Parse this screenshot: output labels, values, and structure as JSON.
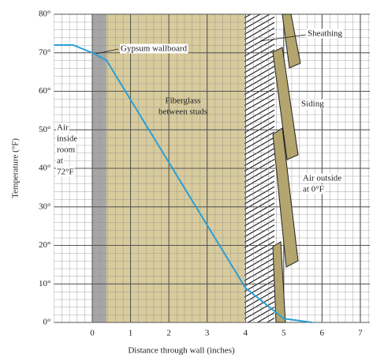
{
  "chart_data": {
    "type": "line",
    "x_label": "Distance through wall (inches)",
    "y_label": "Temperature (°F)",
    "x": [
      -1,
      -0.5,
      0,
      0.375,
      4,
      4.5,
      5,
      5.75
    ],
    "values": [
      72,
      72,
      70,
      68,
      9,
      5,
      1,
      0
    ],
    "color": "#2a9fd6",
    "xlim": [
      -1,
      7.25
    ],
    "ylim": [
      0,
      80
    ],
    "xticks": [
      0,
      1,
      2,
      3,
      4,
      5,
      6,
      7
    ],
    "yticks": [
      {
        "value": 0,
        "label": "0°"
      },
      {
        "value": 10,
        "label": "10°"
      },
      {
        "value": 20,
        "label": "20°"
      },
      {
        "value": 30,
        "label": "30°"
      },
      {
        "value": 40,
        "label": "40°"
      },
      {
        "value": 50,
        "label": "50°"
      },
      {
        "value": 60,
        "label": "60°"
      },
      {
        "value": 70,
        "label": "70°"
      },
      {
        "value": 80,
        "label": "80°"
      }
    ],
    "grid": true,
    "annotations": [
      {
        "lines": [
          "Gypsum wallboard"
        ]
      },
      {
        "lines": [
          "Fiberglass",
          "between studs"
        ]
      },
      {
        "lines": [
          "Sheathing"
        ]
      },
      {
        "lines": [
          "Siding"
        ]
      },
      {
        "lines": [
          "Air",
          "inside",
          "room",
          "at",
          "72°F"
        ]
      },
      {
        "lines": [
          "Air outside",
          "at 0°F"
        ]
      }
    ]
  }
}
